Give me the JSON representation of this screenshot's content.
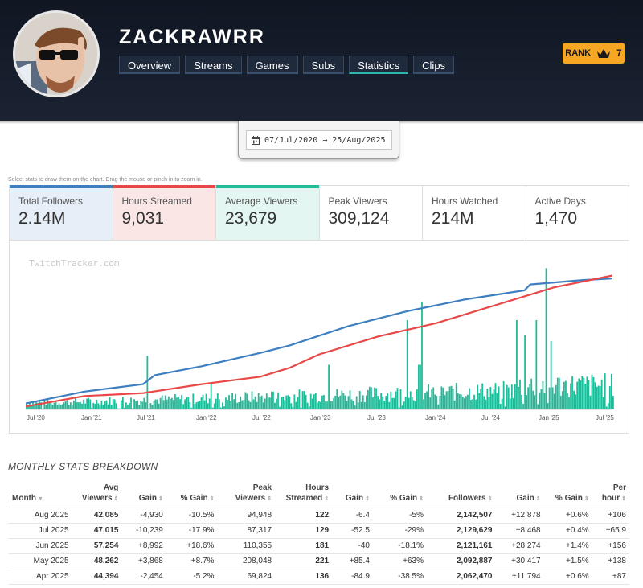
{
  "header": {
    "channel_name": "ZACKRAWRR",
    "rank_label": "RANK",
    "rank_value": "7"
  },
  "nav": {
    "tabs": [
      {
        "label": "Overview"
      },
      {
        "label": "Streams"
      },
      {
        "label": "Games"
      },
      {
        "label": "Subs"
      },
      {
        "label": "Statistics",
        "active": true
      },
      {
        "label": "Clips"
      }
    ]
  },
  "date_range": {
    "start": "07/Jul/2020",
    "arrow": "→",
    "end": "25/Aug/2025"
  },
  "hint": "Select stats to draw them on the chart. Drag the mouse or pinch in to zoom in.",
  "stats": [
    {
      "label": "Total Followers",
      "value": "2.14M",
      "color": "#3d7fbf"
    },
    {
      "label": "Hours Streamed",
      "value": "9,031",
      "color": "#e84848"
    },
    {
      "label": "Average Viewers",
      "value": "23,679",
      "color": "#22bb99"
    },
    {
      "label": "Peak Viewers",
      "value": "309,124"
    },
    {
      "label": "Hours Watched",
      "value": "214M"
    },
    {
      "label": "Active Days",
      "value": "1,470"
    }
  ],
  "chart_data": {
    "type": "line",
    "watermark": "TwitchTracker.com",
    "x_ticks": [
      "Jul '20",
      "Jan '21",
      "Jul '21",
      "Jan '22",
      "Jul '22",
      "Jan '23",
      "Jul '23",
      "Jan '24",
      "Jul '24",
      "Jan '25",
      "Jul '25"
    ],
    "series": [
      {
        "name": "Total Followers",
        "color": "#3d7fbf",
        "x": [
          0,
          0.05,
          0.1,
          0.2,
          0.22,
          0.3,
          0.4,
          0.45,
          0.55,
          0.65,
          0.75,
          0.85,
          0.86,
          0.95,
          1.0
        ],
        "y": [
          0.04,
          0.08,
          0.12,
          0.17,
          0.23,
          0.29,
          0.38,
          0.43,
          0.56,
          0.66,
          0.74,
          0.8,
          0.84,
          0.87,
          0.88
        ]
      },
      {
        "name": "Hours Streamed",
        "color": "#e84848",
        "x": [
          0,
          0.1,
          0.2,
          0.3,
          0.4,
          0.45,
          0.5,
          0.6,
          0.7,
          0.8,
          0.9,
          1.0
        ],
        "y": [
          0.02,
          0.09,
          0.11,
          0.17,
          0.22,
          0.28,
          0.37,
          0.49,
          0.58,
          0.7,
          0.82,
          0.9
        ]
      },
      {
        "name": "Average Viewers",
        "color": "#22bb99",
        "type": "bar"
      }
    ]
  },
  "breakdown": {
    "title": "MONTHLY STATS BREAKDOWN",
    "columns": [
      {
        "label": "Month",
        "sortable": true
      },
      {
        "label": "Avg Viewers",
        "sortable": true
      },
      {
        "label": "Gain",
        "sortable": true
      },
      {
        "label": "% Gain",
        "sortable": true
      },
      {
        "label": "Peak Viewers",
        "sortable": true
      },
      {
        "label": "Hours Streamed",
        "sortable": true
      },
      {
        "label": "Gain",
        "sortable": true
      },
      {
        "label": "% Gain",
        "sortable": true
      },
      {
        "label": "Followers",
        "sortable": true
      },
      {
        "label": "Gain",
        "sortable": true
      },
      {
        "label": "% Gain",
        "sortable": true
      },
      {
        "label": "Per hour",
        "sortable": true
      }
    ],
    "rows": [
      [
        "Aug 2025",
        "42,085",
        "-4,930",
        "-10.5%",
        "94,948",
        "122",
        "-6.4",
        "-5%",
        "2,142,507",
        "+12,878",
        "+0.6%",
        "+106"
      ],
      [
        "Jul 2025",
        "47,015",
        "-10,239",
        "-17.9%",
        "87,317",
        "129",
        "-52.5",
        "-29%",
        "2,129,629",
        "+8,468",
        "+0.4%",
        "+65.9"
      ],
      [
        "Jun 2025",
        "57,254",
        "+8,992",
        "+18.6%",
        "110,355",
        "181",
        "-40",
        "-18.1%",
        "2,121,161",
        "+28,274",
        "+1.4%",
        "+156"
      ],
      [
        "May 2025",
        "48,262",
        "+3,868",
        "+8.7%",
        "208,048",
        "221",
        "+85.4",
        "+63%",
        "2,092,887",
        "+30,417",
        "+1.5%",
        "+138"
      ],
      [
        "Apr 2025",
        "44,394",
        "-2,454",
        "-5.2%",
        "69,824",
        "136",
        "-84.9",
        "-38.5%",
        "2,062,470",
        "+11,794",
        "+0.6%",
        "+87"
      ]
    ]
  }
}
